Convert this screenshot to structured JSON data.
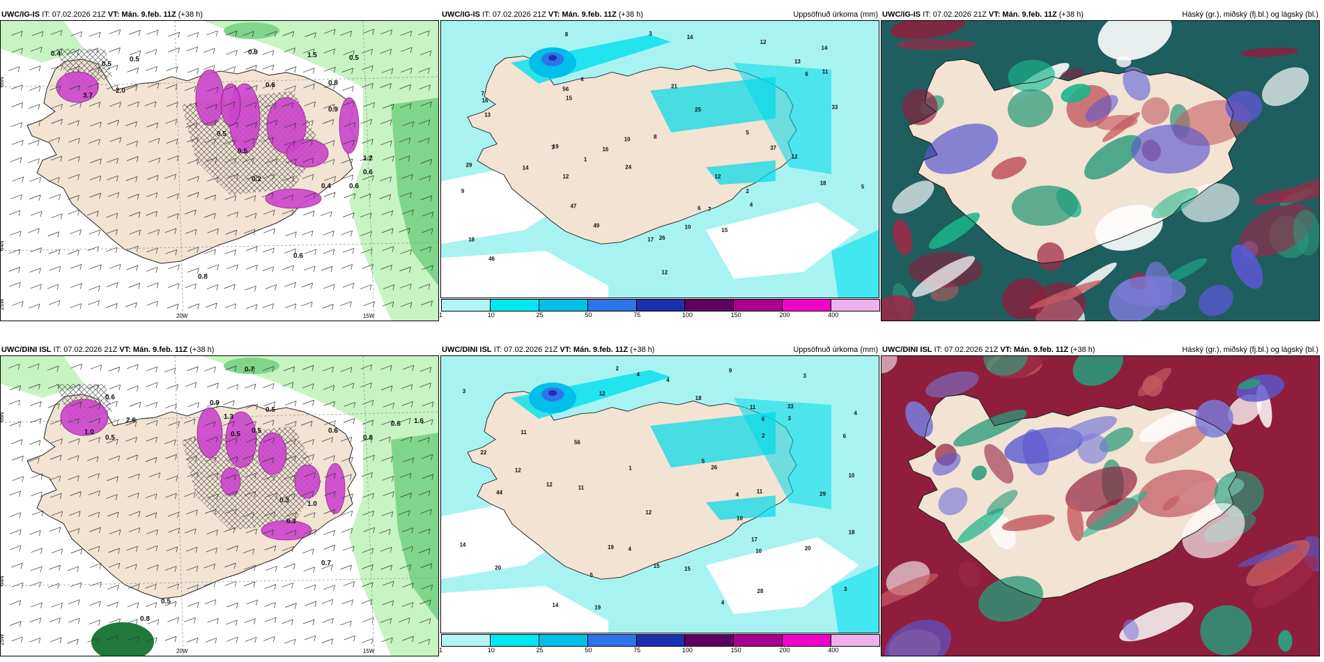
{
  "rows": [
    {
      "model": "UWC/IG-IS",
      "it_label": "IT: 07.02.2026 21Z",
      "vt_label": "VT:",
      "vt_value": "Mán. 9.feb. 11Z",
      "lead": "(+38 h)",
      "lat_labels": [
        "66N",
        "64N"
      ],
      "lon_labels": [
        "25W",
        "20W",
        "15W"
      ],
      "numbers_left": [
        "0.4",
        "0.5",
        "3.7",
        "2.0",
        "0.5",
        "0.9",
        "1.5",
        "0.5",
        "0.6",
        "0.8",
        "1.2",
        "0.6",
        "0.5",
        "0.5",
        "0.4",
        "0.6",
        "0.9",
        "0.6",
        "0.8",
        "0.2"
      ],
      "numbers_mid": [
        "14",
        "8",
        "15",
        "6",
        "16",
        "12",
        "26",
        "14",
        "4",
        "7",
        "24",
        "19",
        "47",
        "56",
        "21",
        "13",
        "37",
        "33",
        "25",
        "12",
        "12",
        "18",
        "46",
        "49",
        "13",
        "10",
        "18",
        "17",
        "29",
        "14",
        "10",
        "12",
        "7",
        "7",
        "8",
        "16",
        "15",
        "5",
        "12",
        "6",
        "3",
        "2",
        "1",
        "11",
        "9",
        "5",
        "4"
      ]
    },
    {
      "model": "UWC/DINI ISL",
      "it_label": "IT: 07.02.2026 21Z",
      "vt_label": "VT:",
      "vt_value": "Mán. 9.feb. 11Z",
      "lead": "(+38 h)",
      "lat_labels": [
        "66N",
        "64N"
      ],
      "lon_labels": [
        "25W",
        "20W",
        "15W"
      ],
      "numbers_left": [
        "0.6",
        "0.7",
        "2.6",
        "1.0",
        "0.5",
        "0.9",
        "1.3",
        "0.5",
        "0.5",
        "0.6",
        "0.8",
        "0.3",
        "0.7",
        "1.6",
        "0.6",
        "0.5",
        "0.8",
        "1.0",
        "0.3",
        "0.5"
      ],
      "numbers_mid": [
        "11",
        "4",
        "6",
        "11",
        "11",
        "12",
        "15",
        "4",
        "4",
        "3",
        "26",
        "18",
        "44",
        "29",
        "56",
        "22",
        "33",
        "20",
        "14",
        "17",
        "19",
        "18",
        "10",
        "12",
        "15",
        "20",
        "12",
        "19",
        "28",
        "14",
        "10",
        "6",
        "5",
        "4",
        "3",
        "2",
        "1",
        "9",
        "5",
        "4",
        "3",
        "12",
        "11",
        "10",
        "3",
        "2",
        "4"
      ]
    }
  ],
  "precip_title": "Uppsöfnuð úrkoma (mm)",
  "cloud_title": "Háský (gr.), miðský (fj.bl.) og lágský (bl.)",
  "legend": {
    "labels": [
      "1",
      "10",
      "25",
      "50",
      "75",
      "100",
      "150",
      "200",
      "400"
    ],
    "colors": [
      "#b3f5f7",
      "#00e8f0",
      "#00bfe8",
      "#2f74e8",
      "#1b2fb0",
      "#5e0060",
      "#a8008f",
      "#f000c8",
      "#f0b0ee"
    ]
  },
  "colors": {
    "land": "#f2e3d3",
    "sea_precip": "#a8f3f2",
    "white_sea": "#ffffff",
    "green_light": "#c8f3c3",
    "green_mid": "#7fd68a",
    "green_dark": "#1f7a3c",
    "magenta": "#cc44cc",
    "cloud_red": "#8f1e3d",
    "cloud_blue": "#5a58d0",
    "cloud_green": "#1ab58a",
    "cloud_teal": "#1e5e5e"
  }
}
